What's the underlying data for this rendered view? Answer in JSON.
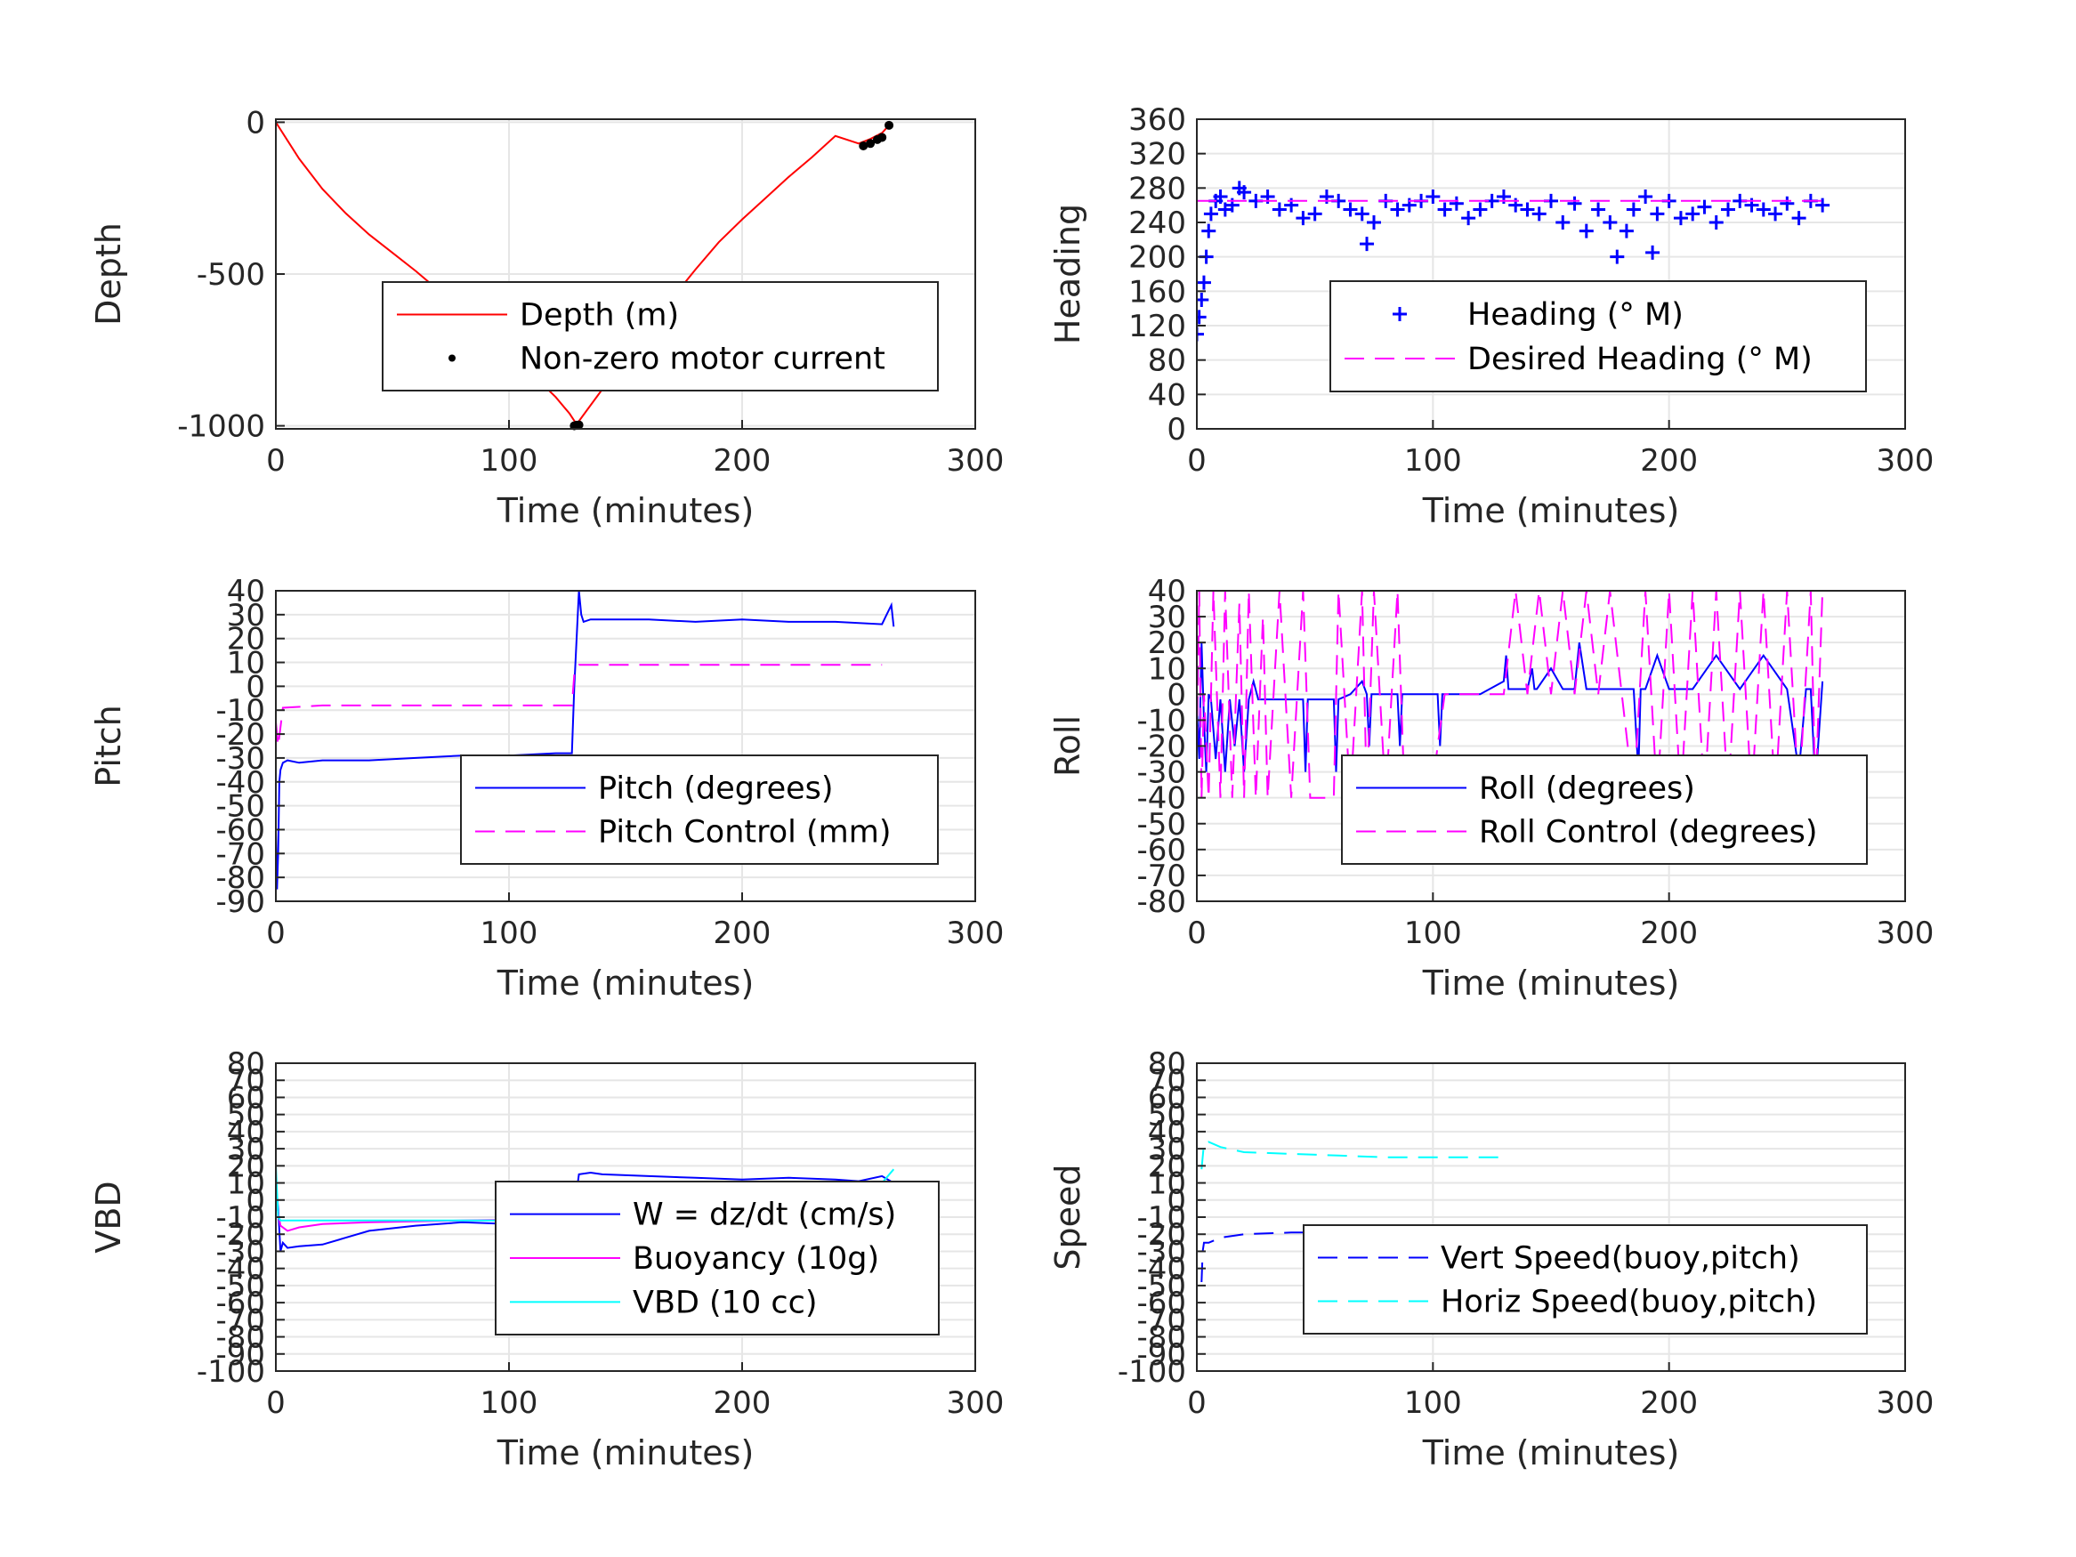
{
  "colors": {
    "red": "#ff0000",
    "blue": "#0000ff",
    "magenta": "#ff00ff",
    "cyan": "#00ffff",
    "black": "#000000",
    "grid": "#e6e6e6",
    "axis": "#262626"
  },
  "chart_data": [
    {
      "type": "line",
      "xlabel": "Time (minutes)",
      "ylabel": "Depth",
      "xlim": [
        0,
        300
      ],
      "ylim": [
        -1010,
        10
      ],
      "xticks": [
        0,
        100,
        200,
        300
      ],
      "yticks": [
        0,
        -500,
        -1000
      ],
      "ytick_labels": [
        "0",
        "-500",
        "-1000"
      ],
      "grid": true,
      "legend_location": "inside-right",
      "series": [
        {
          "name": "Depth (m)",
          "color": "red",
          "style": "solid",
          "x": [
            0,
            5,
            10,
            20,
            30,
            40,
            50,
            60,
            70,
            80,
            90,
            100,
            110,
            120,
            126,
            129,
            140,
            150,
            160,
            170,
            180,
            190,
            200,
            210,
            220,
            230,
            240,
            250,
            255,
            260,
            263
          ],
          "y": [
            0,
            -60,
            -120,
            -220,
            -300,
            -370,
            -430,
            -490,
            -555,
            -620,
            -690,
            -760,
            -830,
            -905,
            -960,
            -995,
            -880,
            -780,
            -680,
            -580,
            -485,
            -395,
            -320,
            -250,
            -180,
            -115,
            -45,
            -70,
            -55,
            -35,
            -10
          ]
        },
        {
          "name": "Non-zero motor current",
          "color": "black",
          "style": "dot",
          "x": [
            128,
            129,
            130,
            252,
            255,
            258,
            260,
            263
          ],
          "y": [
            -1000,
            -998,
            -997,
            -78,
            -70,
            -57,
            -50,
            -10
          ]
        }
      ]
    },
    {
      "type": "line",
      "xlabel": "Time (minutes)",
      "ylabel": "Heading",
      "xlim": [
        0,
        300
      ],
      "ylim": [
        0,
        360
      ],
      "xticks": [
        0,
        100,
        200,
        300
      ],
      "yticks": [
        0,
        40,
        80,
        120,
        160,
        200,
        240,
        280,
        320,
        360
      ],
      "ytick_labels": [
        "0",
        "40",
        "80",
        "120",
        "160",
        "200",
        "240",
        "280",
        "320",
        "360"
      ],
      "grid": true,
      "legend_location": "inside-right",
      "series": [
        {
          "name": "Heading (° M)",
          "color": "blue",
          "style": "plus",
          "x": [
            0,
            1,
            2,
            3,
            4,
            5,
            6,
            8,
            10,
            12,
            15,
            18,
            20,
            25,
            30,
            35,
            40,
            45,
            50,
            55,
            60,
            65,
            70,
            72,
            75,
            80,
            85,
            90,
            95,
            100,
            105,
            110,
            115,
            120,
            125,
            130,
            135,
            140,
            145,
            150,
            155,
            160,
            165,
            170,
            175,
            178,
            182,
            185,
            190,
            193,
            195,
            200,
            205,
            210,
            215,
            220,
            225,
            230,
            235,
            240,
            245,
            250,
            255,
            260,
            265
          ],
          "y": [
            110,
            130,
            150,
            170,
            200,
            230,
            250,
            265,
            270,
            255,
            260,
            280,
            275,
            265,
            270,
            255,
            260,
            245,
            250,
            270,
            265,
            255,
            250,
            215,
            240,
            265,
            255,
            260,
            265,
            270,
            255,
            262,
            245,
            255,
            265,
            270,
            260,
            255,
            250,
            265,
            240,
            262,
            230,
            255,
            240,
            200,
            230,
            255,
            270,
            205,
            250,
            265,
            245,
            250,
            258,
            240,
            255,
            265,
            260,
            255,
            250,
            262,
            245,
            265,
            260
          ]
        },
        {
          "name": "Desired Heading (° M)",
          "color": "magenta",
          "style": "dash",
          "x": [
            0,
            265
          ],
          "y": [
            265,
            265
          ]
        }
      ]
    },
    {
      "type": "line",
      "xlabel": "Time (minutes)",
      "ylabel": "Pitch",
      "xlim": [
        0,
        300
      ],
      "ylim": [
        -90,
        40
      ],
      "xticks": [
        0,
        100,
        200,
        300
      ],
      "yticks": [
        40,
        30,
        20,
        10,
        0,
        -10,
        -20,
        -30,
        -40,
        -50,
        -60,
        -70,
        -80,
        -90
      ],
      "ytick_labels": [
        "40",
        "30",
        "20",
        "10",
        "0",
        "-10",
        "-20",
        "-30",
        "-40",
        "-50",
        "-60",
        "-70",
        "-80",
        "-90"
      ],
      "grid": true,
      "legend_location": "inside-right",
      "series": [
        {
          "name": "Pitch (degrees)",
          "color": "blue",
          "style": "solid",
          "x": [
            0,
            0.5,
            1,
            1.5,
            2,
            3,
            5,
            10,
            20,
            40,
            60,
            80,
            100,
            120,
            127,
            128,
            129,
            130,
            131,
            132,
            135,
            140,
            160,
            180,
            200,
            220,
            240,
            260,
            262,
            264,
            265
          ],
          "y": [
            -60,
            -85,
            -70,
            -40,
            -35,
            -32,
            -31,
            -32,
            -31,
            -31,
            -30,
            -29,
            -29,
            -28,
            -28,
            0,
            20,
            40,
            30,
            27,
            28,
            28,
            28,
            27,
            28,
            27,
            27,
            26,
            30,
            34,
            25
          ]
        },
        {
          "name": "Pitch Control (mm)",
          "color": "magenta",
          "style": "dash",
          "x": [
            0,
            1,
            3,
            20,
            60,
            100,
            127,
            128,
            130,
            150,
            200,
            250,
            260
          ],
          "y": [
            -15,
            -25,
            -9,
            -8,
            -8,
            -8,
            -8,
            5,
            9,
            9,
            9,
            9,
            9
          ]
        }
      ]
    },
    {
      "type": "line",
      "xlabel": "Time (minutes)",
      "ylabel": "Roll",
      "xlim": [
        0,
        300
      ],
      "ylim": [
        -80,
        40
      ],
      "xticks": [
        0,
        100,
        200,
        300
      ],
      "yticks": [
        40,
        30,
        20,
        10,
        0,
        -10,
        -20,
        -30,
        -40,
        -50,
        -60,
        -70,
        -80
      ],
      "ytick_labels": [
        "40",
        "30",
        "20",
        "10",
        "0",
        "-10",
        "-20",
        "-30",
        "-40",
        "-50",
        "-60",
        "-70",
        "-80"
      ],
      "grid": true,
      "legend_location": "inside-right",
      "series": [
        {
          "name": "Roll (degrees)",
          "color": "blue",
          "style": "solid",
          "x": [
            0,
            1,
            2,
            3,
            4,
            5,
            6,
            8,
            10,
            12,
            14,
            16,
            18,
            20,
            22,
            24,
            26,
            28,
            30,
            40,
            45,
            46,
            47,
            50,
            55,
            58,
            59,
            60,
            65,
            70,
            72,
            73,
            74,
            80,
            85,
            86,
            87,
            90,
            100,
            102,
            103,
            104,
            110,
            120,
            130,
            131,
            132,
            140,
            142,
            143,
            144,
            150,
            155,
            160,
            162,
            165,
            170,
            180,
            185,
            187,
            188,
            190,
            195,
            200,
            205,
            210,
            220,
            230,
            240,
            250,
            255,
            258,
            260,
            262,
            265
          ],
          "y": [
            -5,
            -25,
            20,
            -10,
            -30,
            0,
            -2,
            -25,
            -2,
            -30,
            -2,
            -20,
            -2,
            -30,
            -2,
            5,
            -2,
            -2,
            -2,
            -2,
            -2,
            -30,
            -2,
            -2,
            -2,
            -2,
            -30,
            -2,
            0,
            5,
            0,
            -20,
            0,
            0,
            0,
            -20,
            0,
            0,
            0,
            0,
            -20,
            0,
            0,
            0,
            5,
            15,
            2,
            2,
            10,
            2,
            2,
            10,
            2,
            2,
            20,
            2,
            2,
            2,
            2,
            -30,
            2,
            2,
            15,
            2,
            2,
            2,
            15,
            2,
            15,
            2,
            -30,
            2,
            2,
            -35,
            5
          ]
        },
        {
          "name": "Roll Control (degrees)",
          "color": "magenta",
          "style": "dash",
          "x": [
            0,
            1,
            2,
            3,
            5,
            7,
            10,
            12,
            15,
            18,
            20,
            22,
            25,
            28,
            30,
            35,
            40,
            45,
            48,
            55,
            58,
            60,
            65,
            70,
            72,
            75,
            80,
            85,
            88,
            90,
            100,
            102,
            105,
            110,
            120,
            130,
            135,
            140,
            145,
            150,
            155,
            160,
            165,
            170,
            175,
            180,
            185,
            190,
            195,
            200,
            205,
            210,
            215,
            220,
            225,
            230,
            235,
            240,
            245,
            250,
            255,
            260,
            262,
            265
          ],
          "y": [
            -20,
            40,
            -40,
            0,
            -40,
            40,
            -40,
            40,
            -40,
            35,
            -40,
            40,
            -40,
            30,
            -40,
            40,
            -40,
            40,
            -40,
            -40,
            -40,
            40,
            -40,
            40,
            -40,
            40,
            -40,
            40,
            -40,
            -30,
            -35,
            -20,
            0,
            0,
            0,
            0,
            40,
            0,
            40,
            0,
            40,
            0,
            40,
            0,
            40,
            0,
            -40,
            40,
            -40,
            40,
            -40,
            40,
            -40,
            40,
            -40,
            40,
            -40,
            40,
            -40,
            40,
            -40,
            40,
            -40,
            40
          ]
        }
      ]
    },
    {
      "type": "line",
      "xlabel": "Time (minutes)",
      "ylabel": "VBD",
      "xlim": [
        0,
        300
      ],
      "ylim": [
        -100,
        80
      ],
      "xticks": [
        0,
        100,
        200,
        300
      ],
      "yticks": [
        -100,
        -90,
        -80,
        -70,
        -60,
        -50,
        -40,
        -30,
        -20,
        -10,
        0,
        10,
        20,
        30,
        40,
        50,
        60,
        70,
        80
      ],
      "ytick_labels": [
        "-100",
        "-90",
        "-80",
        "-70",
        "-60",
        "-50",
        "-40",
        "-30",
        "-20",
        "-10",
        "0",
        "10",
        "20",
        "30",
        "40",
        "50",
        "60",
        "70",
        "80"
      ],
      "grid": true,
      "legend_location": "inside-right",
      "series": [
        {
          "name": "W = dz/dt (cm/s)",
          "color": "blue",
          "style": "solid",
          "x": [
            0,
            1,
            2,
            3,
            5,
            10,
            20,
            30,
            40,
            60,
            80,
            100,
            120,
            127,
            128,
            130,
            135,
            140,
            160,
            180,
            200,
            220,
            240,
            250,
            260,
            265
          ],
          "y": [
            10,
            -5,
            -30,
            -25,
            -28,
            -27,
            -26,
            -22,
            -18,
            -15,
            -13,
            -14,
            -12,
            -11,
            -5,
            15,
            16,
            15,
            14,
            13,
            12,
            13,
            12,
            11,
            14,
            10
          ]
        },
        {
          "name": "Buoyancy (10g)",
          "color": "magenta",
          "style": "solid",
          "x": [
            0,
            2,
            5,
            10,
            20,
            40,
            80,
            127,
            128,
            130,
            200,
            265
          ],
          "y": [
            0,
            -15,
            -18,
            -16,
            -14,
            -13,
            -12,
            -11,
            5,
            9,
            9,
            9
          ]
        },
        {
          "name": "VBD (10 cc)",
          "color": "cyan",
          "style": "solid",
          "x": [
            0,
            1,
            2,
            5,
            50,
            100,
            127,
            128,
            130,
            200,
            260,
            265
          ],
          "y": [
            20,
            -10,
            -12,
            -12,
            -12,
            -12,
            -12,
            10,
            10,
            10,
            10,
            18
          ]
        }
      ]
    },
    {
      "type": "line",
      "xlabel": "Time (minutes)",
      "ylabel": "Speed",
      "xlim": [
        0,
        300
      ],
      "ylim": [
        -100,
        80
      ],
      "xticks": [
        0,
        100,
        200,
        300
      ],
      "yticks": [
        -100,
        -90,
        -80,
        -70,
        -60,
        -50,
        -40,
        -30,
        -20,
        -10,
        0,
        10,
        20,
        30,
        40,
        50,
        60,
        70,
        80
      ],
      "ytick_labels": [
        "-100",
        "-90",
        "-80",
        "-70",
        "-60",
        "-50",
        "-40",
        "-30",
        "-20",
        "-10",
        "0",
        "10",
        "20",
        "30",
        "40",
        "50",
        "60",
        "70",
        "80"
      ],
      "grid": true,
      "legend_location": "inside-right",
      "series": [
        {
          "name": "Vert Speed(buoy,pitch)",
          "color": "blue",
          "style": "dash",
          "x": [
            2,
            2.5,
            3,
            5,
            10,
            20,
            40,
            60,
            80,
            100,
            120,
            128
          ],
          "y": [
            -48,
            -30,
            -25,
            -25,
            -22,
            -20,
            -19,
            -19,
            -18,
            -18,
            -17,
            -16
          ]
        },
        {
          "name": "Horiz Speed(buoy,pitch)",
          "color": "cyan",
          "style": "dash",
          "x": [
            2,
            3,
            5,
            10,
            20,
            40,
            60,
            80,
            100,
            120,
            128
          ],
          "y": [
            18,
            33,
            34,
            31,
            28,
            27,
            26,
            25,
            25,
            25,
            25
          ]
        }
      ]
    }
  ]
}
